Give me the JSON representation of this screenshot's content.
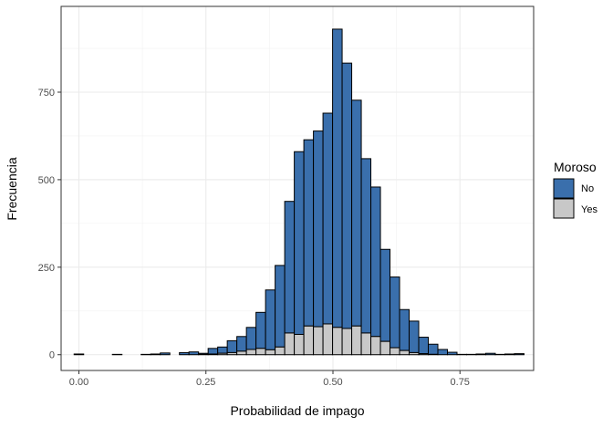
{
  "chart_data": {
    "type": "bar",
    "subtype": "stacked-histogram",
    "xlabel": "Probabilidad de impago",
    "ylabel": "Frecuencia",
    "xlim": [
      -0.035,
      0.895
    ],
    "ylim": [
      -45,
      995
    ],
    "x_ticks": [
      0.0,
      0.25,
      0.5,
      0.75
    ],
    "x_tick_labels": [
      "0.00",
      "0.25",
      "0.50",
      "0.75"
    ],
    "y_ticks": [
      0,
      250,
      500,
      750
    ],
    "y_tick_labels": [
      "0",
      "250",
      "500",
      "750"
    ],
    "bin_width": 0.01884,
    "bin_centers": [
      0.0,
      0.01884,
      0.03768,
      0.05652,
      0.07536,
      0.0942,
      0.11304,
      0.13188,
      0.15072,
      0.16956,
      0.1884,
      0.20724,
      0.22608,
      0.24492,
      0.26376,
      0.2826,
      0.30144,
      0.32028,
      0.33912,
      0.35796,
      0.3768,
      0.39564,
      0.41448,
      0.43332,
      0.45216,
      0.471,
      0.48984,
      0.50868,
      0.52752,
      0.54636,
      0.5652,
      0.58404,
      0.60288,
      0.62172,
      0.64056,
      0.6594,
      0.67824,
      0.69708,
      0.71592,
      0.73476,
      0.7536,
      0.77244,
      0.79128,
      0.81012,
      0.82896,
      0.8478,
      0.86664
    ],
    "series": [
      {
        "name": "Yes",
        "values": [
          0,
          0,
          0,
          0,
          0,
          0,
          0,
          0,
          0,
          0,
          0,
          0,
          0,
          1,
          2,
          4,
          6,
          10,
          15,
          18,
          14,
          22,
          62,
          58,
          82,
          80,
          88,
          78,
          75,
          82,
          62,
          52,
          38,
          20,
          12,
          6,
          3,
          1,
          0,
          0,
          0,
          0,
          0,
          0,
          0,
          0,
          0
        ]
      },
      {
        "name": "No",
        "values": [
          2,
          0,
          0,
          0,
          1,
          0,
          0,
          1,
          2,
          5,
          0,
          6,
          8,
          3,
          16,
          18,
          34,
          42,
          63,
          103,
          171,
          233,
          376,
          522,
          532,
          559,
          602,
          852,
          758,
          645,
          498,
          427,
          263,
          202,
          117,
          90,
          47,
          29,
          15,
          7,
          1,
          1,
          2,
          4,
          1,
          2,
          3
        ]
      }
    ],
    "colors": {
      "No": "#3a6fac",
      "Yes": "#c8c8c8"
    },
    "legend": {
      "title": "Moroso",
      "position": "right",
      "items": [
        "No",
        "Yes"
      ]
    },
    "grid": true
  }
}
